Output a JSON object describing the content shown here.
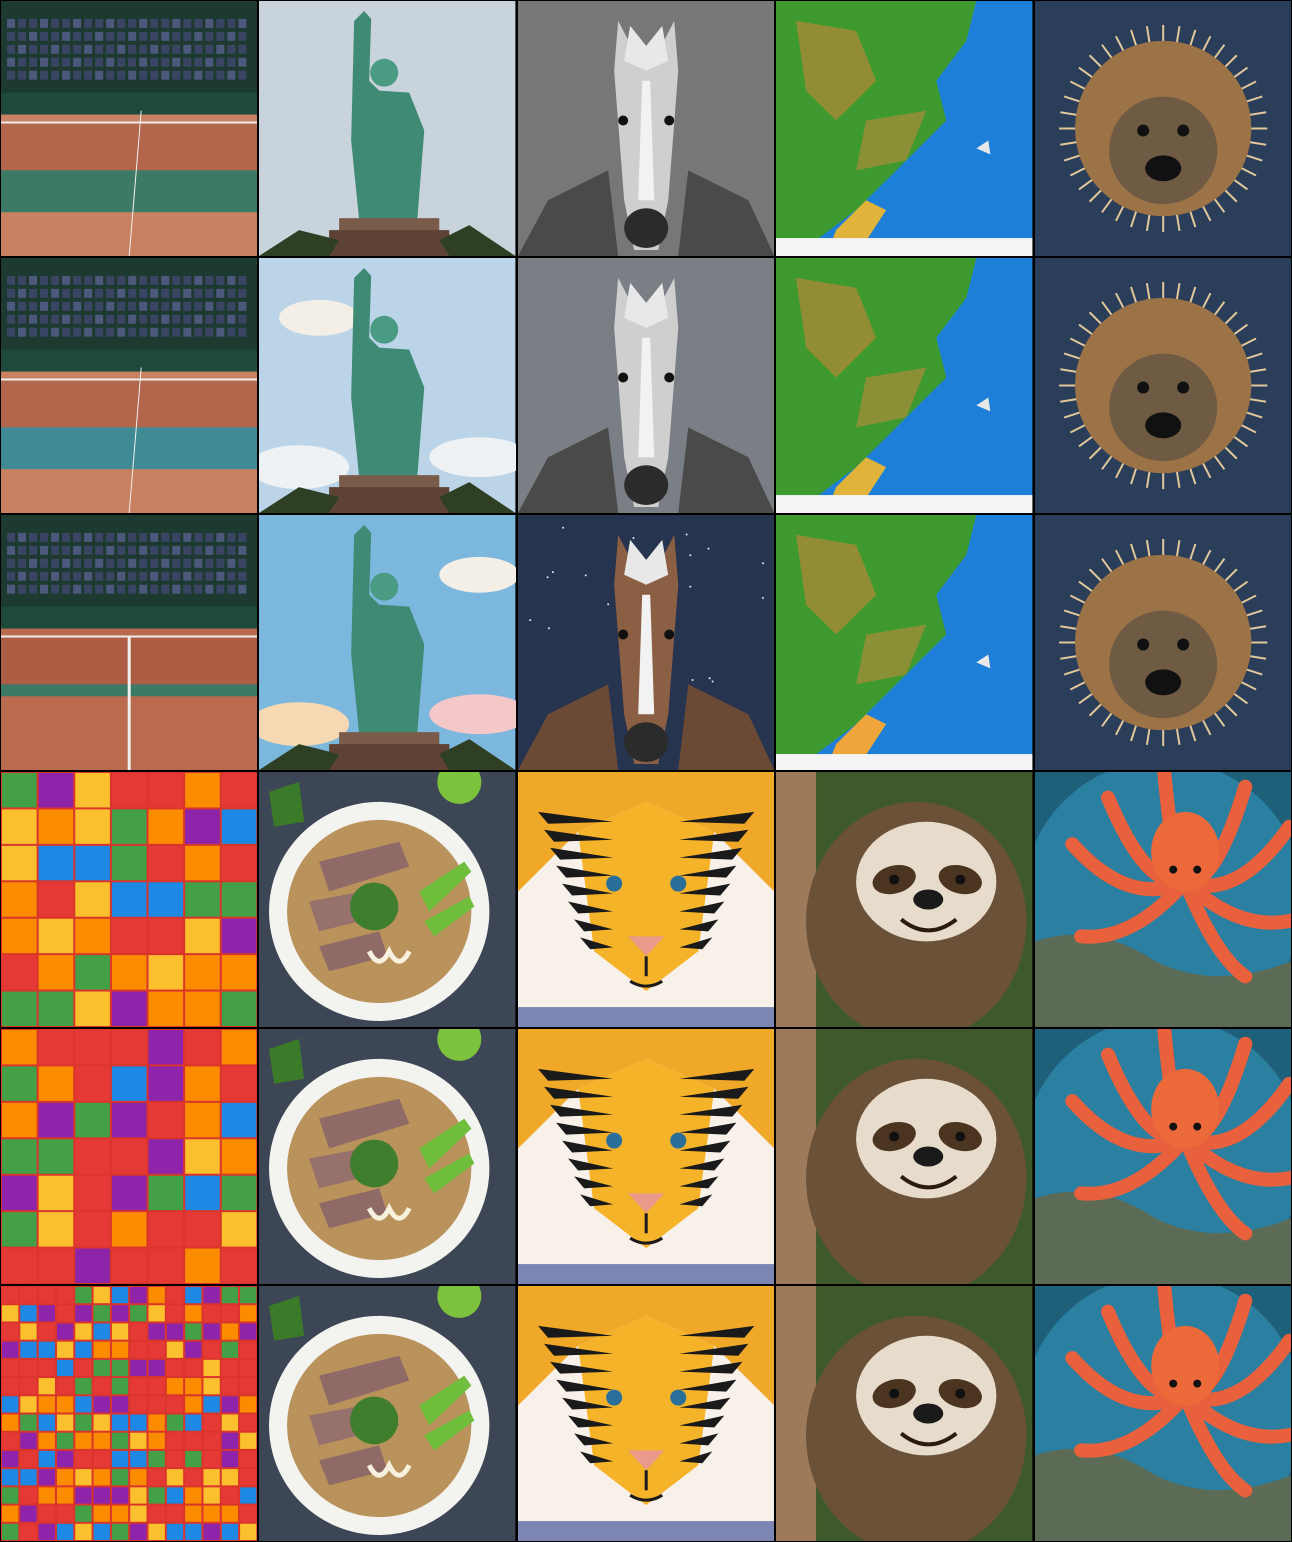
{
  "grid": {
    "rows": 6,
    "columns": 5,
    "variants_per_subject": 3,
    "subject_groups": [
      [
        "tennis-stadium-icon",
        "statue-of-liberty-icon",
        "horse-icon",
        "coastline-map-icon",
        "hedgehog-icon"
      ],
      [
        "toy-blocks-icon",
        "pho-bowl-icon",
        "tiger-icon",
        "sloth-icon",
        "octopus-icon"
      ]
    ]
  }
}
